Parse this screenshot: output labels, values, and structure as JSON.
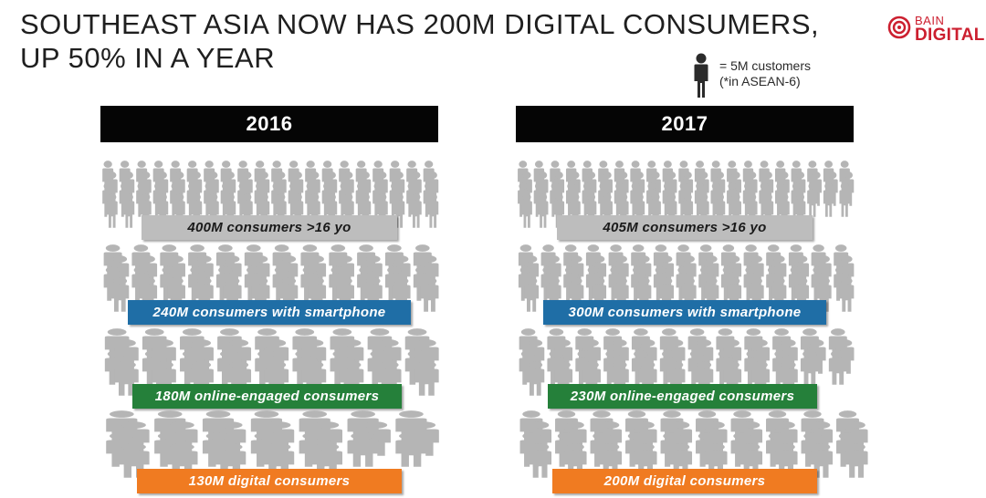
{
  "title_line1": "SOUTHEAST ASIA NOW HAS 200M DIGITAL CONSUMERS,",
  "title_line2": "UP 50% IN A YEAR",
  "logo": {
    "line1": "BAIN",
    "line2": "DIGITAL",
    "color": "#cc1f2f"
  },
  "legend": {
    "line1": "= 5M customers",
    "line2": "(*in ASEAN-6)",
    "icon": "person-icon"
  },
  "colors": {
    "person": "#b5b5b5",
    "consumers": "#bdbdbd",
    "smartphone": "#1f6ea6",
    "online": "#25803a",
    "digital": "#f07b21"
  },
  "chart_data": {
    "type": "table",
    "unit_note": "= 5M customers",
    "categories": [
      "consumers >16 yo",
      "consumers with smartphone",
      "online-engaged consumers",
      "digital consumers"
    ],
    "series": [
      {
        "name": "2016",
        "values": [
          400,
          240,
          180,
          130
        ],
        "labels": [
          "400M consumers >16 yo",
          "240M consumers with smartphone",
          "180M online-engaged consumers",
          "130M digital consumers"
        ]
      },
      {
        "name": "2017",
        "values": [
          405,
          300,
          230,
          200
        ],
        "labels": [
          "405M consumers >16 yo",
          "300M consumers with smartphone",
          "230M online-engaged consumers",
          "200M digital consumers"
        ]
      }
    ]
  }
}
